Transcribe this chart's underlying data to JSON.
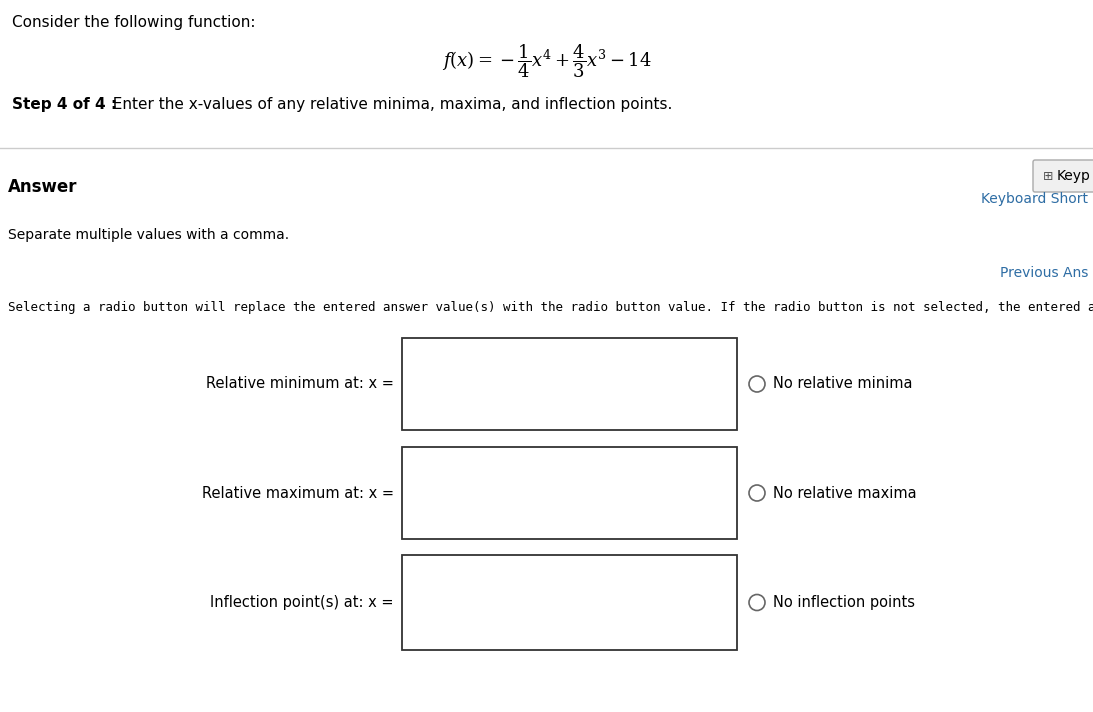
{
  "title_text": "Consider the following function:",
  "step_bold": "Step 4 of 4 :",
  "step_normal": "  Enter the x-values of any relative minima, maxima, and inflection points.",
  "answer_label": "Answer",
  "keyp_label": "Keyp",
  "keyboard_short_label": "Keyboard Short",
  "separate_text": "Separate multiple values with a comma.",
  "previous_ans_label": "Previous Ans",
  "selecting_text": "Selecting a radio button will replace the entered answer value(s) with the radio button value. If the radio button is not selected, the entered answer is used.",
  "row1_label": "Relative minimum at: x =",
  "row1_radio": "No relative minima",
  "row2_label": "Relative maximum at: x =",
  "row2_radio": "No relative maxima",
  "row3_label": "Inflection point(s) at: x =",
  "row3_radio": "No inflection points",
  "bg_color": "#ffffff",
  "text_color": "#000000",
  "link_color": "#2e6da4",
  "divider_color": "#cccccc",
  "box_edge_color": "#333333",
  "radio_edge_color": "#666666",
  "keyp_box_color": "#f0f0f0",
  "keyp_border_color": "#aaaaaa"
}
